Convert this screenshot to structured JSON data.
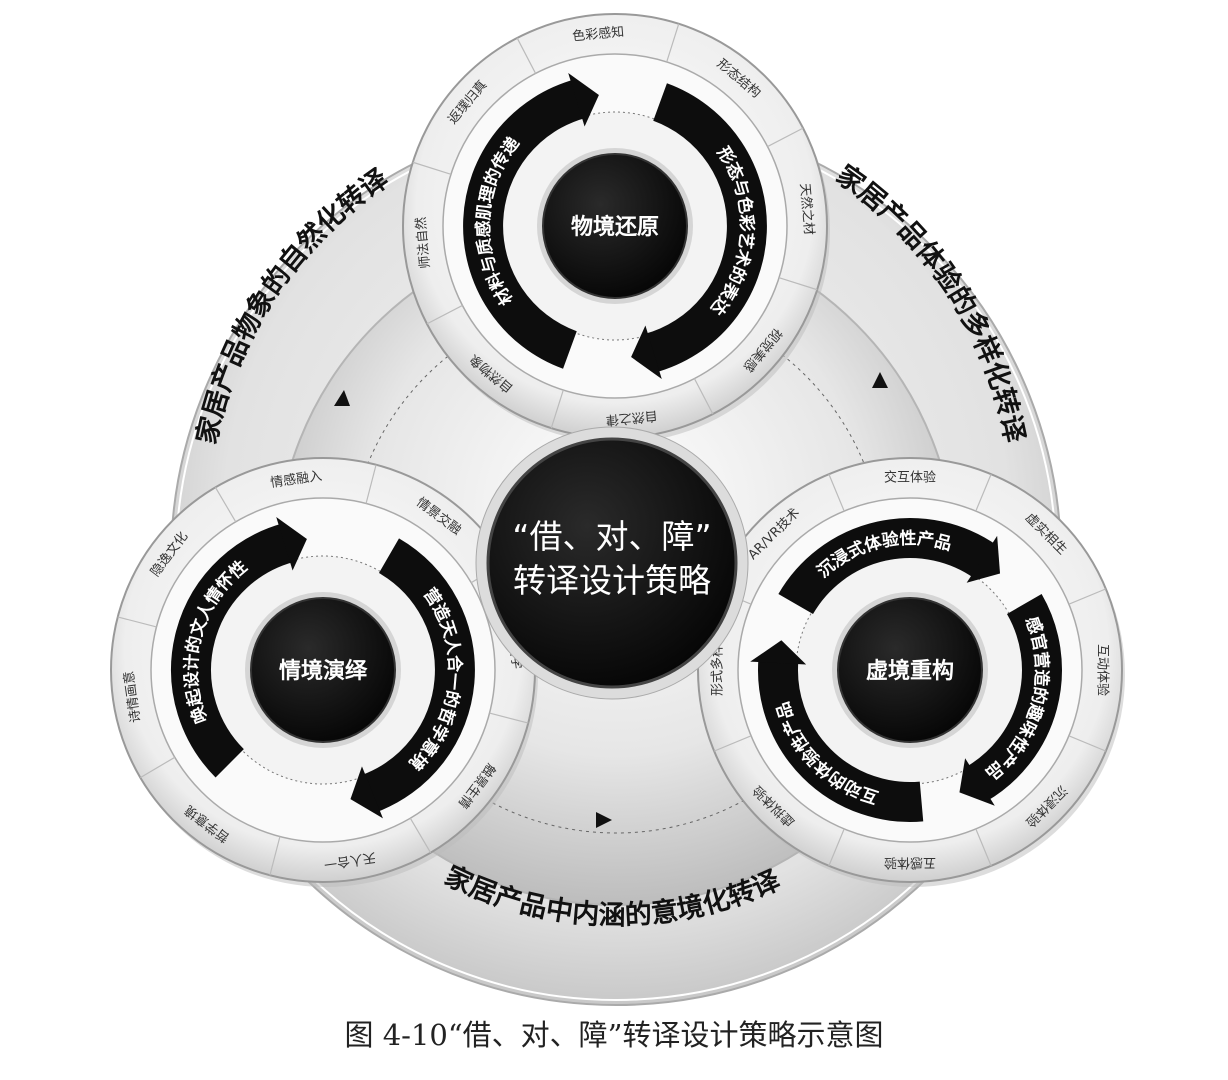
{
  "center": {
    "line1": "“借、对、障”",
    "line2": "转译设计策略"
  },
  "outer_labels": [
    "家居产品物象的自然化转译",
    "家居产品体验的多样化转译",
    "家居产品中内涵的意境化转译"
  ],
  "sub_circles": [
    {
      "title": "物境还原",
      "band_outer": "材料与质感肌理的传递",
      "band_inner": "形态与色彩艺术的表达",
      "segments": [
        "色彩感知",
        "形态结构",
        "天然之材",
        "视觉美感",
        "自然之律",
        "自然物象",
        "师法自然",
        "返璞归真"
      ]
    },
    {
      "title": "情境演绎",
      "band_outer": "唤起设计的文人情怀性",
      "band_inner": "营造天人合一的哲学意境",
      "segments": [
        "情感融入",
        "情景交融",
        "禅宗美学",
        "触景生情",
        "天人合一",
        "哲学意境",
        "诗情画意",
        "隐逸文化"
      ]
    },
    {
      "title": "虚境重构",
      "band_outer": "沉浸式体验性产品",
      "band_inner": "感官营造的趣味性产品",
      "band_left": "互动的体验性产品",
      "segments": [
        "交互体验",
        "虚实相生",
        "互动体验",
        "沉浸体验",
        "五感体验",
        "虚拟体验",
        "形式多样",
        "AR/VR技术"
      ]
    }
  ],
  "caption": "图 4-10“借、对、障”转译设计策略示意图"
}
